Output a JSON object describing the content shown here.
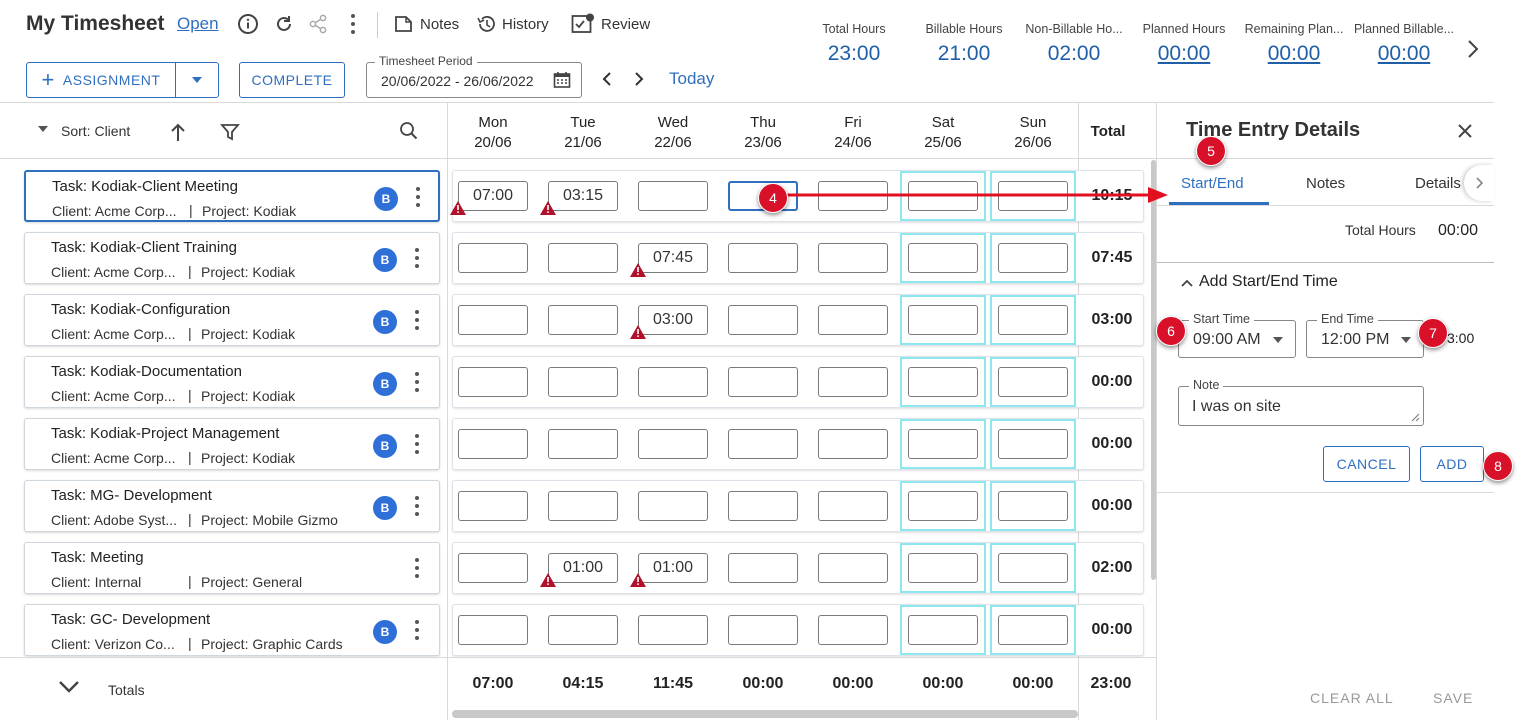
{
  "header": {
    "title": "My Timesheet",
    "status_link": "Open",
    "notes_label": "Notes",
    "history_label": "History",
    "review_label": "Review",
    "assignment_label": "ASSIGNMENT",
    "complete_label": "COMPLETE",
    "period_label": "Timesheet Period",
    "period_value": "20/06/2022 - 26/06/2022",
    "today_label": "Today"
  },
  "stats": [
    {
      "label": "Total Hours",
      "value": "23:00"
    },
    {
      "label": "Billable Hours",
      "value": "21:00"
    },
    {
      "label": "Non-Billable Ho...",
      "value": "02:00"
    },
    {
      "label": "Planned Hours",
      "value": "00:00"
    },
    {
      "label": "Remaining Plan...",
      "value": "00:00"
    },
    {
      "label": "Planned Billable...",
      "value": "00:00"
    }
  ],
  "toolbar": {
    "sort_label": "Sort: Client"
  },
  "days": [
    {
      "day": "Mon",
      "date": "20/06"
    },
    {
      "day": "Tue",
      "date": "21/06"
    },
    {
      "day": "Wed",
      "date": "22/06"
    },
    {
      "day": "Thu",
      "date": "23/06"
    },
    {
      "day": "Fri",
      "date": "24/06"
    },
    {
      "day": "Sat",
      "date": "25/06"
    },
    {
      "day": "Sun",
      "date": "26/06"
    }
  ],
  "total_header": "Total",
  "rows": [
    {
      "task": "Task: Kodiak-Client Meeting",
      "client": "Client: Acme Corp...",
      "project": "Project: Kodiak",
      "badge": "B",
      "cells": [
        "07:00",
        "03:15",
        "",
        "",
        "",
        "",
        ""
      ],
      "warn": [
        true,
        true,
        false,
        false,
        false,
        false,
        false
      ],
      "total": "10:15"
    },
    {
      "task": "Task: Kodiak-Client Training",
      "client": "Client: Acme Corp...",
      "project": "Project: Kodiak",
      "badge": "B",
      "cells": [
        "",
        "",
        "07:45",
        "",
        "",
        "",
        ""
      ],
      "warn": [
        false,
        false,
        true,
        false,
        false,
        false,
        false
      ],
      "total": "07:45"
    },
    {
      "task": "Task: Kodiak-Configuration",
      "client": "Client: Acme Corp...",
      "project": "Project: Kodiak",
      "badge": "B",
      "cells": [
        "",
        "",
        "03:00",
        "",
        "",
        "",
        ""
      ],
      "warn": [
        false,
        false,
        true,
        false,
        false,
        false,
        false
      ],
      "total": "03:00"
    },
    {
      "task": "Task: Kodiak-Documentation",
      "client": "Client: Acme Corp...",
      "project": "Project: Kodiak",
      "badge": "B",
      "cells": [
        "",
        "",
        "",
        "",
        "",
        "",
        ""
      ],
      "warn": [
        false,
        false,
        false,
        false,
        false,
        false,
        false
      ],
      "total": "00:00"
    },
    {
      "task": "Task: Kodiak-Project Management",
      "client": "Client: Acme Corp...",
      "project": "Project: Kodiak",
      "badge": "B",
      "cells": [
        "",
        "",
        "",
        "",
        "",
        "",
        ""
      ],
      "warn": [
        false,
        false,
        false,
        false,
        false,
        false,
        false
      ],
      "total": "00:00"
    },
    {
      "task": "Task: MG- Development",
      "client": "Client: Adobe Syst...",
      "project": "Project: Mobile Gizmo",
      "badge": "B",
      "cells": [
        "",
        "",
        "",
        "",
        "",
        "",
        ""
      ],
      "warn": [
        false,
        false,
        false,
        false,
        false,
        false,
        false
      ],
      "total": "00:00"
    },
    {
      "task": "Task: Meeting",
      "client": "Client: Internal",
      "project": "Project: General",
      "badge": "",
      "cells": [
        "",
        "01:00",
        "01:00",
        "",
        "",
        "",
        ""
      ],
      "warn": [
        false,
        true,
        true,
        false,
        false,
        false,
        false
      ],
      "total": "02:00"
    },
    {
      "task": "Task: GC- Development",
      "client": "Client: Verizon Co...",
      "project": "Project: Graphic Cards",
      "badge": "B",
      "cells": [
        "",
        "",
        "",
        "",
        "",
        "",
        ""
      ],
      "warn": [
        false,
        false,
        false,
        false,
        false,
        false,
        false
      ],
      "total": "00:00"
    }
  ],
  "totals": {
    "label": "Totals",
    "days": [
      "07:00",
      "04:15",
      "11:45",
      "00:00",
      "00:00",
      "00:00",
      "00:00"
    ],
    "grand": "23:00"
  },
  "panel": {
    "title": "Time Entry Details",
    "tabs": [
      "Start/End",
      "Notes",
      "Details"
    ],
    "total_hours_label": "Total Hours",
    "total_hours_value": "00:00",
    "section_title": "Add Start/End Time",
    "start_label": "Start Time",
    "start_value": "09:00 AM",
    "end_label": "End Time",
    "end_value": "12:00 PM",
    "duration_fragment": "3:00",
    "note_label": "Note",
    "note_value": "I was on site",
    "cancel_label": "CANCEL",
    "add_label": "ADD",
    "clear_all_label": "CLEAR ALL",
    "save_label": "SAVE"
  },
  "markers": [
    "4",
    "5",
    "6",
    "7",
    "8"
  ],
  "colors": {
    "accent": "#2f6fbf",
    "value_blue": "#1f5fa8",
    "weekend_border": "#8ee6ee",
    "warning": "#b0102a",
    "marker": "#d8102a"
  }
}
